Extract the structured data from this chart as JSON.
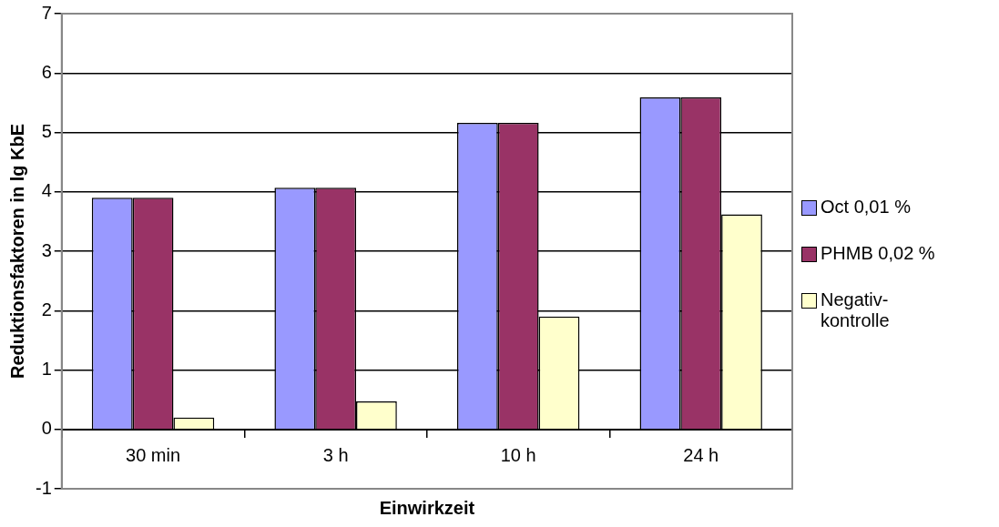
{
  "chart_data": {
    "type": "bar",
    "xlabel": "Einwirkzeit",
    "ylabel": "Reduktionsfaktoren in lg KbE",
    "categories": [
      "30 min",
      "3 h",
      "10 h",
      "24 h"
    ],
    "series": [
      {
        "name": "Oct 0,01 %",
        "color": "#9999ff",
        "values": [
          3.9,
          4.07,
          5.16,
          5.59
        ]
      },
      {
        "name": "PHMB 0,02 %",
        "color": "#993366",
        "values": [
          3.9,
          4.07,
          5.16,
          5.59
        ]
      },
      {
        "name": "Negativ-kontrolle",
        "color": "#ffffcc",
        "values": [
          0.2,
          0.47,
          1.9,
          3.62
        ]
      }
    ],
    "ylim": [
      -1,
      7
    ],
    "yticks": [
      -1,
      0,
      1,
      2,
      3,
      4,
      5,
      6,
      7
    ],
    "grid": "y",
    "legend": "right"
  }
}
